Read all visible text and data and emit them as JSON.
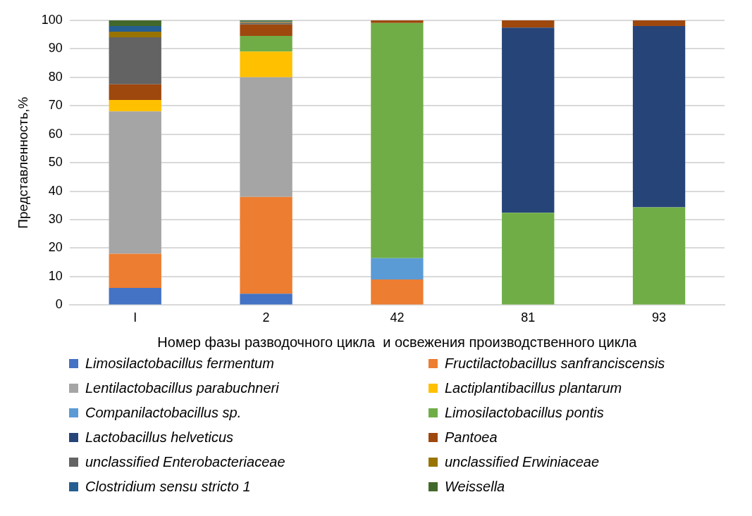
{
  "chart_data": {
    "type": "bar",
    "stacked": true,
    "ylabel": "Представленность,%",
    "xlabel": "Номер фазы разводочного цикла  и освежения производственного цикла",
    "categories": [
      "I",
      "2",
      "42",
      "81",
      "93"
    ],
    "ylim": [
      0,
      100
    ],
    "yticks": [
      0,
      10,
      20,
      30,
      40,
      50,
      60,
      70,
      80,
      90,
      100
    ],
    "grid": "y",
    "legend": "bottom",
    "series": [
      {
        "name": "Limosilactobacillus fermentum",
        "color": "#4472c4",
        "values": [
          6,
          4,
          null,
          null,
          null
        ]
      },
      {
        "name": "Fructilactobacillus sanfranciscensis",
        "color": "#ed7d31",
        "values": [
          12,
          34,
          9,
          null,
          null
        ]
      },
      {
        "name": "Lentilactobacillus parabuchneri",
        "color": "#a5a5a5",
        "values": [
          50,
          42,
          null,
          null,
          null
        ]
      },
      {
        "name": "Lactiplantibacillus plantarum",
        "color": "#ffc000",
        "values": [
          4,
          9,
          null,
          null,
          null
        ]
      },
      {
        "name": "Companilactobacillus sp.",
        "color": "#5b9bd5",
        "values": [
          null,
          null,
          7.5,
          null,
          null
        ]
      },
      {
        "name": "Limosilactobacillus pontis",
        "color": "#70ad47",
        "values": [
          null,
          5.5,
          82.5,
          32.4,
          34.3
        ]
      },
      {
        "name": "Lactobacillus helveticus",
        "color": "#264478",
        "values": [
          null,
          null,
          null,
          65,
          63.7
        ]
      },
      {
        "name": "Pantoea",
        "color": "#9e480e",
        "values": [
          5.5,
          4,
          1,
          2.6,
          2
        ]
      },
      {
        "name": "unclassified Enterobacteriaceae",
        "color": "#636363",
        "values": [
          16.5,
          0.6,
          null,
          null,
          null
        ]
      },
      {
        "name": "unclassified Erwiniaceae",
        "color": "#997300",
        "values": [
          2,
          0.3,
          null,
          null,
          null
        ]
      },
      {
        "name": "Clostridium sensu stricto 1",
        "color": "#255e91",
        "values": [
          2,
          0.2,
          null,
          null,
          null
        ]
      },
      {
        "name": "Weissella",
        "color": "#43682b",
        "values": [
          2,
          0.4,
          null,
          null,
          null
        ]
      }
    ]
  }
}
